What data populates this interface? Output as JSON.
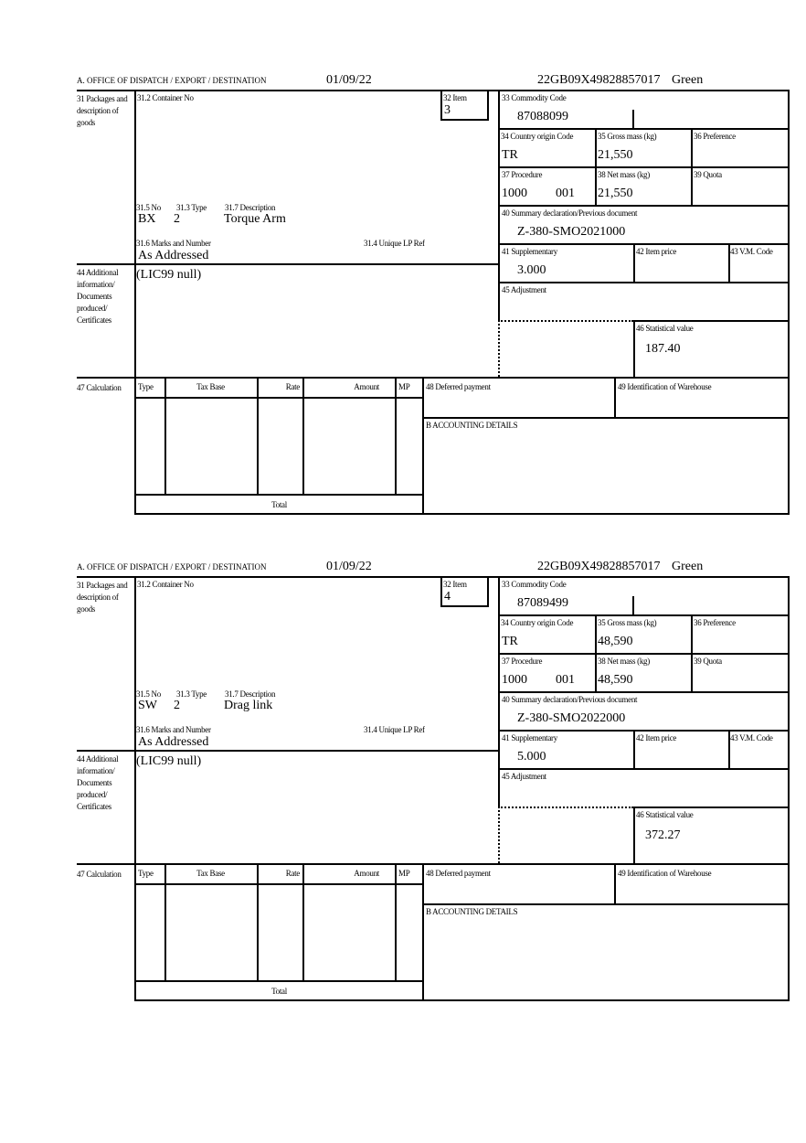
{
  "labels": {
    "office": "A.  OFFICE OF DISPATCH / EXPORT / DESTINATION",
    "packages": "31 Packages and description of goods",
    "container_no": "31.2 Container No",
    "item": "32 Item",
    "commodity_code": "33 Commodity Code",
    "country_origin": "34 Country origin Code",
    "gross_mass": "35 Gross mass (kg)",
    "preference": "36 Preference",
    "procedure": "37 Procedure",
    "net_mass": "38 Net mass (kg)",
    "quota": "39 Quota",
    "summary_declaration": "40 Summary declaration/Previous document",
    "supplementary": "41 Supplementary",
    "item_price": "42 Item price",
    "vm_code": "43 V.M. Code",
    "adjustment": "45 Adjustment",
    "statistical_value": "46 Statistical value",
    "no": "31.5 No",
    "type": "31.3 Type",
    "description": "31.7 Description",
    "marks": "31.6 Marks and Number",
    "unique_lp_ref": "31.4 Unique LP Ref",
    "additional_info": "44 Additional information/ Documents produced/ Certificates",
    "calculation": "47 Calculation",
    "calc_headers": [
      "Type",
      "Tax Base",
      "Rate",
      "Amount",
      "MP"
    ],
    "deferred_payment": "48 Deferred payment",
    "warehouse": "49 Identification of Warehouse",
    "accounting": "B ACCOUNTING DETAILS",
    "total": "Total"
  },
  "forms": [
    {
      "date": "01/09/22",
      "reference": "22GB09X49828857017",
      "route": "Green",
      "item": "3",
      "commodity_code": "87088099",
      "country_origin": "TR",
      "gross_mass": "21,550",
      "procedure_code": "1000",
      "procedure_sub": "001",
      "net_mass": "21,550",
      "summary_declaration": "Z-380-SMO2021000",
      "supplementary": "3.000",
      "statistical_value": "187.40",
      "no": "BX",
      "type": "2",
      "description": "Torque Arm",
      "marks": "As Addressed",
      "additional_info": "(LIC99 null)"
    },
    {
      "date": "01/09/22",
      "reference": "22GB09X49828857017",
      "route": "Green",
      "item": "4",
      "commodity_code": "87089499",
      "country_origin": "TR",
      "gross_mass": "48,590",
      "procedure_code": "1000",
      "procedure_sub": "001",
      "net_mass": "48,590",
      "summary_declaration": "Z-380-SMO2022000",
      "supplementary": "5.000",
      "statistical_value": "372.27",
      "no": "SW",
      "type": "2",
      "description": "Drag link",
      "marks": "As Addressed",
      "additional_info": "(LIC99 null)"
    }
  ]
}
